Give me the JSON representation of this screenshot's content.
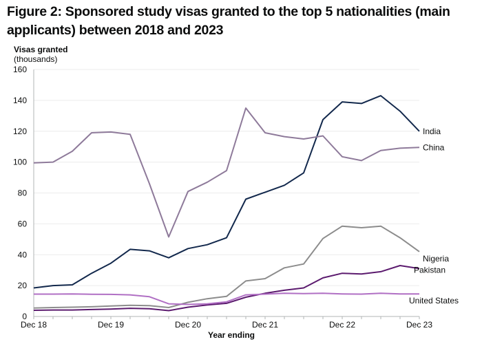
{
  "title": "Figure 2: Sponsored study visas granted to the top 5 nationalities (main applicants) between 2018 and 2023",
  "chart_data": {
    "type": "line",
    "title": "Figure 2: Sponsored study visas granted to the top 5 nationalities (main applicants) between 2018 and 2023",
    "ylabel_bold": "Visas granted",
    "ylabel_sub": "(thousands)",
    "xlabel": "Year ending",
    "ylim": [
      0,
      160
    ],
    "yticks": [
      0,
      20,
      40,
      60,
      80,
      100,
      120,
      140,
      160
    ],
    "grid": "horizontal",
    "legend": "inline-right",
    "x": [
      "Dec 18",
      "Mar 19",
      "Jun 19",
      "Sep 19",
      "Dec 19",
      "Mar 20",
      "Jun 20",
      "Sep 20",
      "Dec 20",
      "Mar 21",
      "Jun 21",
      "Sep 21",
      "Dec 21",
      "Mar 22",
      "Jun 22",
      "Sep 22",
      "Dec 22",
      "Mar 23",
      "Jun 23",
      "Sep 23",
      "Dec 23"
    ],
    "xtick_labels": [
      "Dec 18",
      "Dec 19",
      "Dec 20",
      "Dec 21",
      "Dec 22",
      "Dec 23"
    ],
    "series": [
      {
        "name": "India",
        "color": "#12284c",
        "values": [
          18.5,
          20,
          20.5,
          28,
          34.5,
          43.5,
          42.5,
          38,
          44,
          46.5,
          51,
          76,
          80.5,
          85,
          93,
          127.5,
          139,
          138,
          143,
          133,
          120
        ]
      },
      {
        "name": "China",
        "color": "#8e7a9a",
        "values": [
          99.5,
          100,
          107,
          119,
          119.5,
          118,
          86,
          51.5,
          81,
          87,
          94.5,
          135,
          119,
          116.5,
          115,
          117,
          103.5,
          101,
          107.5,
          109,
          109.5
        ]
      },
      {
        "name": "Nigeria",
        "color": "#8c8c8c",
        "values": [
          5.5,
          5.8,
          6,
          6.3,
          6.8,
          7.2,
          7,
          5.8,
          9.2,
          11.5,
          13,
          23,
          24.5,
          31.5,
          34,
          50.5,
          58.5,
          57.5,
          58.5,
          51,
          42
        ]
      },
      {
        "name": "Pakistan",
        "color": "#5b1a6e",
        "values": [
          4,
          4.2,
          4.2,
          4.5,
          4.8,
          5.3,
          5,
          3.8,
          6,
          7.5,
          8.5,
          12.5,
          15,
          17,
          18.5,
          25,
          28,
          27.5,
          29,
          33,
          31
        ]
      },
      {
        "name": "United States",
        "color": "#b06fc4",
        "values": [
          14.5,
          14.5,
          14.6,
          14.4,
          14.3,
          14,
          12.8,
          8.2,
          7.8,
          8.2,
          9.5,
          14,
          14.5,
          15,
          14.8,
          15,
          14.6,
          14.5,
          15,
          14.6,
          14.6
        ]
      }
    ]
  }
}
